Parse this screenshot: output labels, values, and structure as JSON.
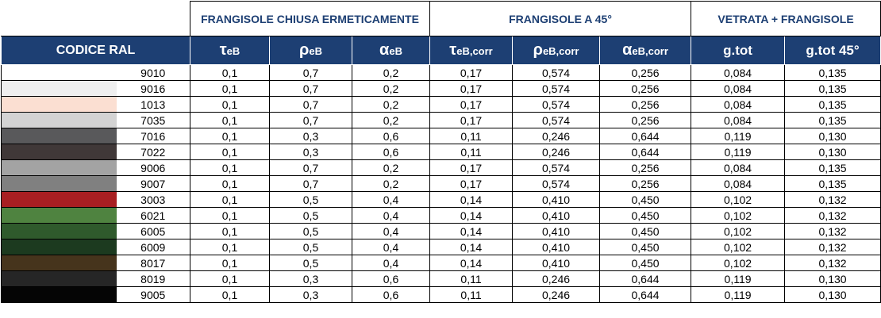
{
  "groups": {
    "closed": "FRANGISOLE CHIUSA ERMETICAMENTE",
    "at45": "FRANGISOLE A 45°",
    "glazing": "VETRATA + FRANGISOLE"
  },
  "headers": {
    "codice": "CODICE RAL",
    "tau_sym": "τ",
    "tau_sub": "eB",
    "rho_sym": "ρ",
    "rho_sub": "eB",
    "alpha_sym": "α",
    "alpha_sub": "eB",
    "tau_corr_sym": "τ",
    "tau_corr_sub": "eB,corr",
    "rho_corr_sym": "ρ",
    "rho_corr_sub": "eB,corr",
    "alpha_corr_sym": "α",
    "alpha_corr_sub": "eB,corr",
    "gtot": "g.tot",
    "gtot45": "g.tot 45°"
  },
  "rows": [
    {
      "color": "#ffffff",
      "code": "9010",
      "tau": "0,1",
      "rho": "0,7",
      "alpha": "0,2",
      "tau_corr": "0,17",
      "rho_corr": "0,574",
      "alpha_corr": "0,256",
      "gtot": "0,084",
      "gtot45": "0,135"
    },
    {
      "color": "#efefef",
      "code": "9016",
      "tau": "0,1",
      "rho": "0,7",
      "alpha": "0,2",
      "tau_corr": "0,17",
      "rho_corr": "0,574",
      "alpha_corr": "0,256",
      "gtot": "0,084",
      "gtot45": "0,135"
    },
    {
      "color": "#fbdfd2",
      "code": "1013",
      "tau": "0,1",
      "rho": "0,7",
      "alpha": "0,2",
      "tau_corr": "0,17",
      "rho_corr": "0,574",
      "alpha_corr": "0,256",
      "gtot": "0,084",
      "gtot45": "0,135"
    },
    {
      "color": "#d3d3d3",
      "code": "7035",
      "tau": "0,1",
      "rho": "0,7",
      "alpha": "0,2",
      "tau_corr": "0,17",
      "rho_corr": "0,574",
      "alpha_corr": "0,256",
      "gtot": "0,084",
      "gtot45": "0,135"
    },
    {
      "color": "#59595b",
      "code": "7016",
      "tau": "0,1",
      "rho": "0,3",
      "alpha": "0,6",
      "tau_corr": "0,11",
      "rho_corr": "0,246",
      "alpha_corr": "0,644",
      "gtot": "0,119",
      "gtot45": "0,130"
    },
    {
      "color": "#403838",
      "code": "7022",
      "tau": "0,1",
      "rho": "0,3",
      "alpha": "0,6",
      "tau_corr": "0,11",
      "rho_corr": "0,246",
      "alpha_corr": "0,644",
      "gtot": "0,119",
      "gtot45": "0,130"
    },
    {
      "color": "#a3a3a3",
      "code": "9006",
      "tau": "0,1",
      "rho": "0,7",
      "alpha": "0,2",
      "tau_corr": "0,17",
      "rho_corr": "0,574",
      "alpha_corr": "0,256",
      "gtot": "0,084",
      "gtot45": "0,135"
    },
    {
      "color": "#808080",
      "code": "9007",
      "tau": "0,1",
      "rho": "0,7",
      "alpha": "0,2",
      "tau_corr": "0,17",
      "rho_corr": "0,574",
      "alpha_corr": "0,256",
      "gtot": "0,084",
      "gtot45": "0,135"
    },
    {
      "color": "#a81f22",
      "code": "3003",
      "tau": "0,1",
      "rho": "0,5",
      "alpha": "0,4",
      "tau_corr": "0,14",
      "rho_corr": "0,410",
      "alpha_corr": "0,450",
      "gtot": "0,102",
      "gtot45": "0,132"
    },
    {
      "color": "#4f8340",
      "code": "6021",
      "tau": "0,1",
      "rho": "0,5",
      "alpha": "0,4",
      "tau_corr": "0,14",
      "rho_corr": "0,410",
      "alpha_corr": "0,450",
      "gtot": "0,102",
      "gtot45": "0,132"
    },
    {
      "color": "#2f5a2c",
      "code": "6005",
      "tau": "0,1",
      "rho": "0,5",
      "alpha": "0,4",
      "tau_corr": "0,14",
      "rho_corr": "0,410",
      "alpha_corr": "0,450",
      "gtot": "0,102",
      "gtot45": "0,132"
    },
    {
      "color": "#1c3a1f",
      "code": "6009",
      "tau": "0,1",
      "rho": "0,5",
      "alpha": "0,4",
      "tau_corr": "0,14",
      "rho_corr": "0,410",
      "alpha_corr": "0,450",
      "gtot": "0,102",
      "gtot45": "0,132"
    },
    {
      "color": "#46341c",
      "code": "8017",
      "tau": "0,1",
      "rho": "0,5",
      "alpha": "0,4",
      "tau_corr": "0,14",
      "rho_corr": "0,410",
      "alpha_corr": "0,450",
      "gtot": "0,102",
      "gtot45": "0,132"
    },
    {
      "color": "#262626",
      "code": "8019",
      "tau": "0,1",
      "rho": "0,3",
      "alpha": "0,6",
      "tau_corr": "0,11",
      "rho_corr": "0,246",
      "alpha_corr": "0,644",
      "gtot": "0,119",
      "gtot45": "0,130"
    },
    {
      "color": "#050505",
      "code": "9005",
      "tau": "0,1",
      "rho": "0,3",
      "alpha": "0,6",
      "tau_corr": "0,11",
      "rho_corr": "0,246",
      "alpha_corr": "0,644",
      "gtot": "0,119",
      "gtot45": "0,130"
    }
  ]
}
